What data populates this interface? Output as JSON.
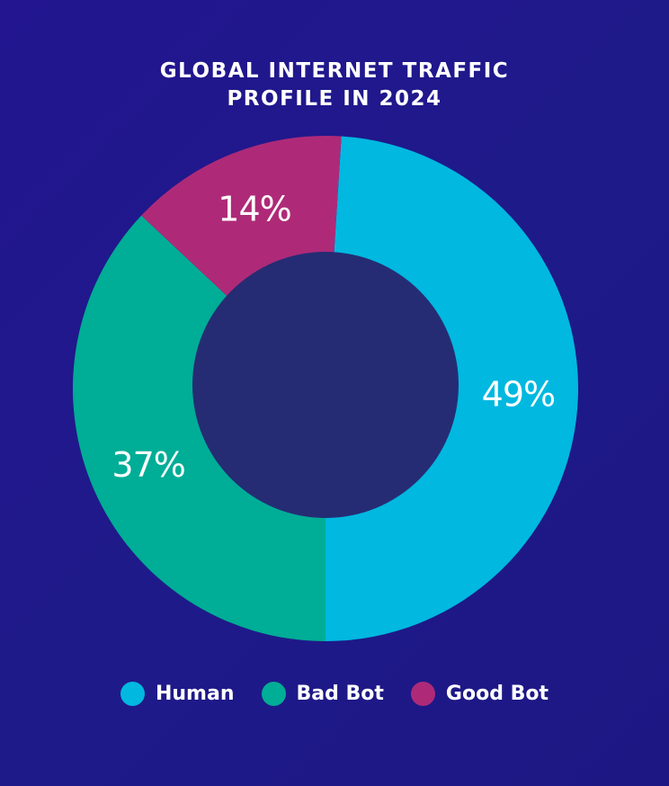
{
  "chart_data": {
    "type": "pie",
    "donut": true,
    "title_lines": [
      "GLOBAL INTERNET TRAFFIC",
      "PROFILE IN 2024"
    ],
    "slices": [
      {
        "name": "Human",
        "value": 49,
        "label": "49%",
        "color": "#00b8e0"
      },
      {
        "name": "Bad Bot",
        "value": 37,
        "label": "37%",
        "color": "#00ad96"
      },
      {
        "name": "Good Bot",
        "value": 14,
        "label": "14%",
        "color": "#ae2a78"
      }
    ],
    "hole_color": "#252c74",
    "legend_position": "bottom"
  }
}
